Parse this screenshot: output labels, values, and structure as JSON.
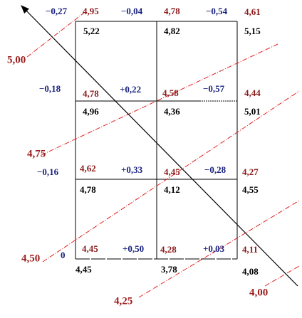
{
  "rows": [
    {
      "changes": [
        "−0,27",
        "−0,04",
        "−0,54"
      ],
      "red_values": [
        "4,95",
        "4,78",
        "4,61"
      ],
      "black_values": [
        "5,22",
        "4,82",
        "5,15"
      ]
    },
    {
      "changes": [
        "−0,18",
        "+0,22",
        "−0,57"
      ],
      "red_values": [
        "4,78",
        "4,58",
        "4,44"
      ],
      "black_values": [
        "4,96",
        "4,36",
        "5,01"
      ]
    },
    {
      "changes": [
        "−0,16",
        "+0,33",
        "−0,28"
      ],
      "red_values": [
        "4,62",
        "4,45",
        "4,27"
      ],
      "black_values": [
        "4,78",
        "4,12",
        "4,55"
      ]
    },
    {
      "changes": [
        "0",
        "+0,50",
        "+0,03"
      ],
      "red_values": [
        "4,45",
        "4,28",
        "4,11"
      ],
      "black_values": [
        "4,45",
        "3,78",
        "4,08"
      ]
    }
  ],
  "isolines": [
    "5,00",
    "4,75",
    "4,50",
    "4,25",
    "4,00"
  ]
}
